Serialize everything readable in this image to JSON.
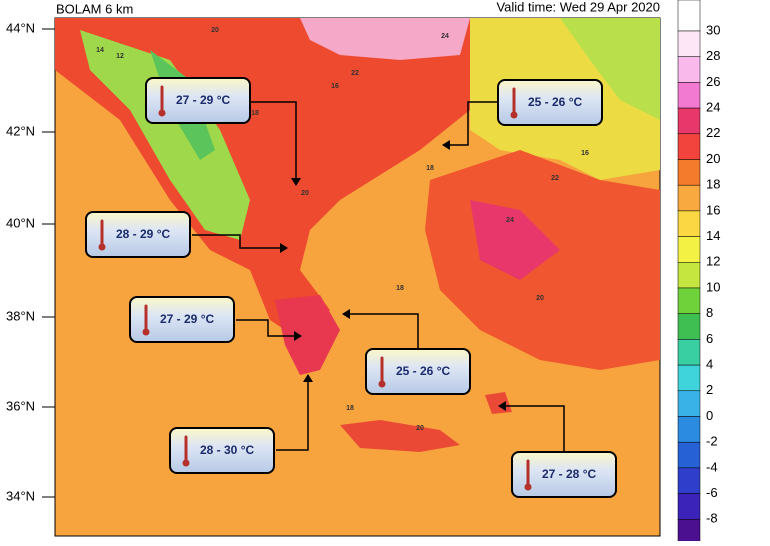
{
  "header": {
    "model": "BOLAM 6 km",
    "valid_time": "Valid time: Wed 29 Apr 2020"
  },
  "latitudes": [
    "44°N",
    "42°N",
    "40°N",
    "38°N",
    "36°N",
    "34°N"
  ],
  "colorbar": {
    "levels": [
      30,
      28,
      26,
      24,
      22,
      20,
      18,
      16,
      14,
      12,
      10,
      8,
      6,
      4,
      2,
      0,
      -2,
      -4,
      -6,
      -8
    ],
    "colors": [
      "#fde6f6",
      "#f9b9ea",
      "#f27ad1",
      "#e8386b",
      "#f2443c",
      "#f47a2c",
      "#f8a93f",
      "#fbd843",
      "#f3f244",
      "#c5e63f",
      "#6fd23a",
      "#3fbf52",
      "#39cfa2",
      "#3fd4dc",
      "#39b2e8",
      "#2b8be0",
      "#2661d6",
      "#2f3fcc",
      "#3b22b8",
      "#4a108f"
    ]
  },
  "callouts": [
    "27 - 29 °C",
    "25 - 26 °C",
    "28 - 29 °C",
    "27 - 29 °C",
    "25 - 26 °C",
    "28 - 30 °C",
    "27 - 28 °C"
  ],
  "map_labels": [
    "20",
    "18",
    "24",
    "22",
    "16",
    "14",
    "12",
    "20",
    "18",
    "22",
    "20",
    "18",
    "18",
    "20",
    "24",
    "16"
  ]
}
